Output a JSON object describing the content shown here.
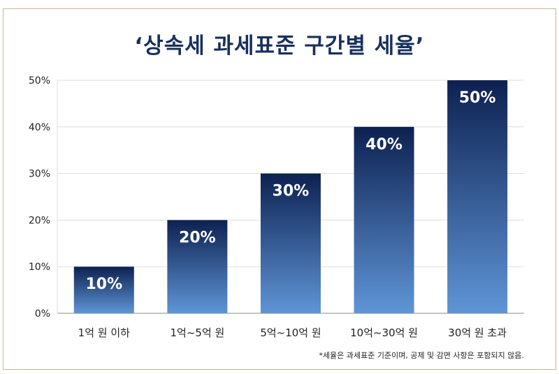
{
  "title": "‘상속세 과세표준 구간별 세율’",
  "footnote": "*세율은 과세표준 기준이며, 공제 및 감면 사항은 포함되지 않음.",
  "colors": {
    "title": "#17305c",
    "bar_top": "#0d2151",
    "bar_bottom": "#5f95d6",
    "grid": "#dddddd",
    "frame": "#c8b98a"
  },
  "chart_data": {
    "type": "bar",
    "title": "‘상속세 과세표준 구간별 세율’",
    "categories": [
      "1억 원 이하",
      "1억~5억 원",
      "5억~10억 원",
      "10억~30억 원",
      "30억 원 초과"
    ],
    "values": [
      10,
      20,
      30,
      40,
      50
    ],
    "data_labels": [
      "10%",
      "20%",
      "30%",
      "40%",
      "50%"
    ],
    "y_ticks": [
      "0%",
      "10%",
      "20%",
      "30%",
      "40%",
      "50%"
    ],
    "ylim": [
      0,
      50
    ],
    "xlabel": "",
    "ylabel": "",
    "grid": true
  }
}
